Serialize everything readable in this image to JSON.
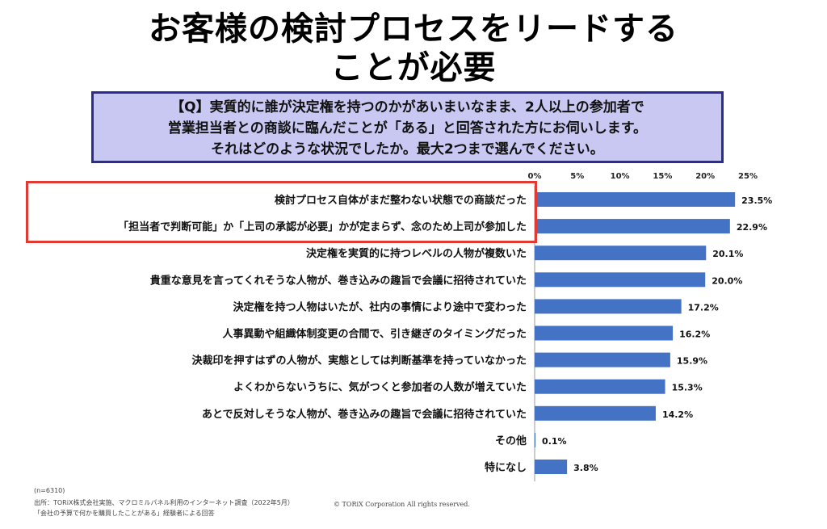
{
  "title_line1": "お客様の検討プロセスをリードする",
  "title_line2": "ことが必要",
  "question": {
    "line1": "【Q】実質的に誰が決定権を持つのかがあいまいなまま、2人以上の参加者で",
    "line2": "営業担当者との商談に臨んだことが「ある」と回答された方にお伺いします。",
    "line3": "それはどのような状況でしたか。最大2つまで選んでください。"
  },
  "chart_data": {
    "type": "bar",
    "orientation": "horizontal",
    "categories": [
      "検討プロセス自体がまだ整わない状態での商談だった",
      "「担当者で判断可能」か「上司の承認が必要」かが定まらず、念のため上司が参加した",
      "決定権を実質的に持つレベルの人物が複数いた",
      "貴重な意見を言ってくれそうな人物が、巻き込みの趣旨で会議に招待されていた",
      "決定権を持つ人物はいたが、社内の事情により途中で変わった",
      "人事異動や組織体制変更の合間で、引き継ぎのタイミングだった",
      "決裁印を押すはずの人物が、実態としては判断基準を持っていなかった",
      "よくわからないうちに、気がつくと参加者の人数が増えていた",
      "あとで反対しそうな人物が、巻き込みの趣旨で会議に招待されていた",
      "その他",
      "特になし"
    ],
    "values": [
      23.5,
      22.9,
      20.1,
      20.0,
      17.2,
      16.2,
      15.9,
      15.3,
      14.2,
      0.1,
      3.8
    ],
    "value_labels": [
      "23.5%",
      "22.9%",
      "20.1%",
      "20.0%",
      "17.2%",
      "16.2%",
      "15.9%",
      "15.3%",
      "14.2%",
      "0.1%",
      "3.8%"
    ],
    "ticks": [
      "0%",
      "5%",
      "10%",
      "15%",
      "20%",
      "25%"
    ],
    "tick_values": [
      0,
      5,
      10,
      15,
      20,
      25
    ],
    "xlim": [
      0,
      25
    ],
    "highlighted_categories": [
      0,
      1
    ],
    "bar_color": "#4472c4",
    "highlight_color": "#e03a32"
  },
  "footnotes": {
    "n": "(n=6310)",
    "source": "出所：TORiX株式会社実施、マクロミルパネル利用のインターネット調査（2022年5月）",
    "copyright": "© TORiX Corporation All rights reserved.",
    "respondents": "「会社の予算で何かを購買したことがある」経験者による回答"
  }
}
